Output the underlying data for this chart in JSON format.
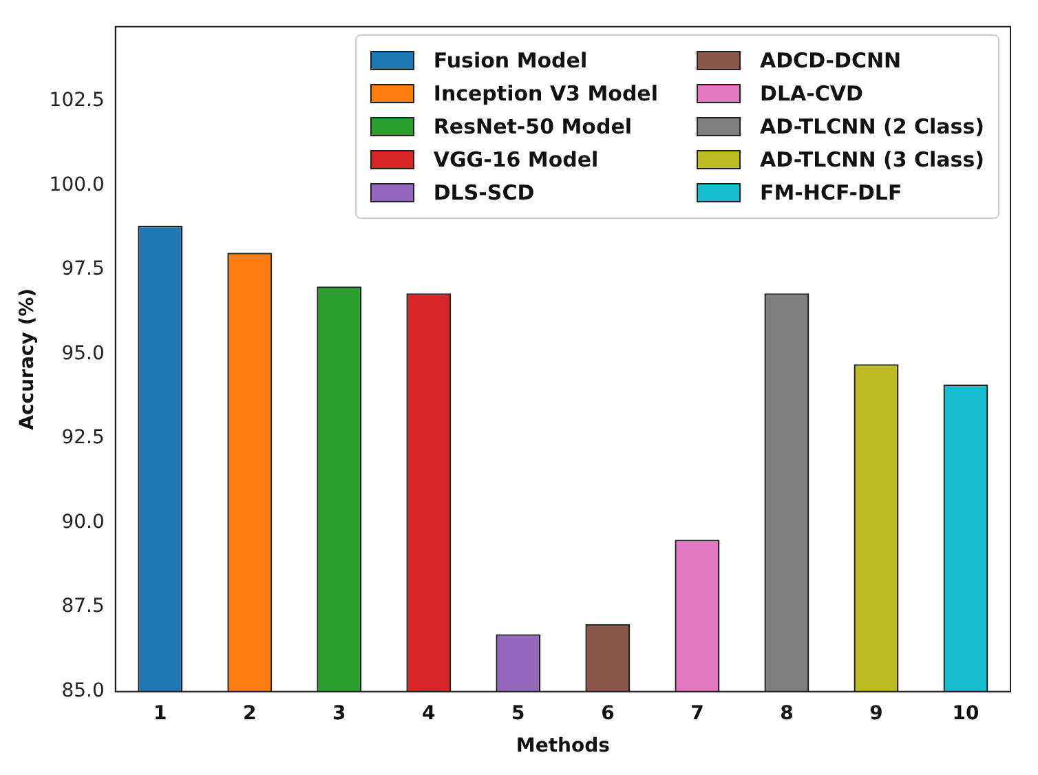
{
  "chart_data": {
    "type": "bar",
    "xlabel": "Methods",
    "ylabel": "Accuracy (%)",
    "categories": [
      "1",
      "2",
      "3",
      "4",
      "5",
      "6",
      "7",
      "8",
      "9",
      "10"
    ],
    "series": [
      {
        "name": "Fusion Model",
        "color": "#1f77b4",
        "values": [
          98.8,
          null,
          null,
          null,
          null,
          null,
          null,
          null,
          null,
          null
        ]
      },
      {
        "name": "Inception V3 Model",
        "color": "#ff7f0e",
        "values": [
          null,
          98.0,
          null,
          null,
          null,
          null,
          null,
          null,
          null,
          null
        ]
      },
      {
        "name": "ResNet-50 Model",
        "color": "#2ca02c",
        "values": [
          null,
          null,
          97.0,
          null,
          null,
          null,
          null,
          null,
          null,
          null
        ]
      },
      {
        "name": "VGG-16 Model",
        "color": "#d62728",
        "values": [
          null,
          null,
          null,
          96.8,
          null,
          null,
          null,
          null,
          null,
          null
        ]
      },
      {
        "name": "DLS-SCD",
        "color": "#9467bd",
        "values": [
          null,
          null,
          null,
          null,
          86.7,
          null,
          null,
          null,
          null,
          null
        ]
      },
      {
        "name": "ADCD-DCNN",
        "color": "#8c564b",
        "values": [
          null,
          null,
          null,
          null,
          null,
          87.0,
          null,
          null,
          null,
          null
        ]
      },
      {
        "name": "DLA-CVD",
        "color": "#e377c2",
        "values": [
          null,
          null,
          null,
          null,
          null,
          null,
          89.5,
          null,
          null,
          null
        ]
      },
      {
        "name": "AD-TLCNN (2 Class)",
        "color": "#7f7f7f",
        "values": [
          null,
          null,
          null,
          null,
          null,
          null,
          null,
          96.8,
          null,
          null
        ]
      },
      {
        "name": "AD-TLCNN (3 Class)",
        "color": "#bcbd22",
        "values": [
          null,
          null,
          null,
          null,
          null,
          null,
          null,
          null,
          94.7,
          null
        ]
      },
      {
        "name": "FM-HCF-DLF",
        "color": "#17becf",
        "values": [
          null,
          null,
          null,
          null,
          null,
          null,
          null,
          null,
          null,
          94.1
        ]
      }
    ],
    "ylim": [
      85,
      104.7
    ],
    "yticks": [
      {
        "value": 85,
        "label": "85.0"
      },
      {
        "value": 87.5,
        "label": "87.5"
      },
      {
        "value": 90,
        "label": "90.0"
      },
      {
        "value": 92.5,
        "label": "92.5"
      },
      {
        "value": 95,
        "label": "95.0"
      },
      {
        "value": 97.5,
        "label": "97.5"
      },
      {
        "value": 100,
        "label": "100.0"
      },
      {
        "value": 102.5,
        "label": "102.5"
      }
    ],
    "legend": "top right"
  }
}
